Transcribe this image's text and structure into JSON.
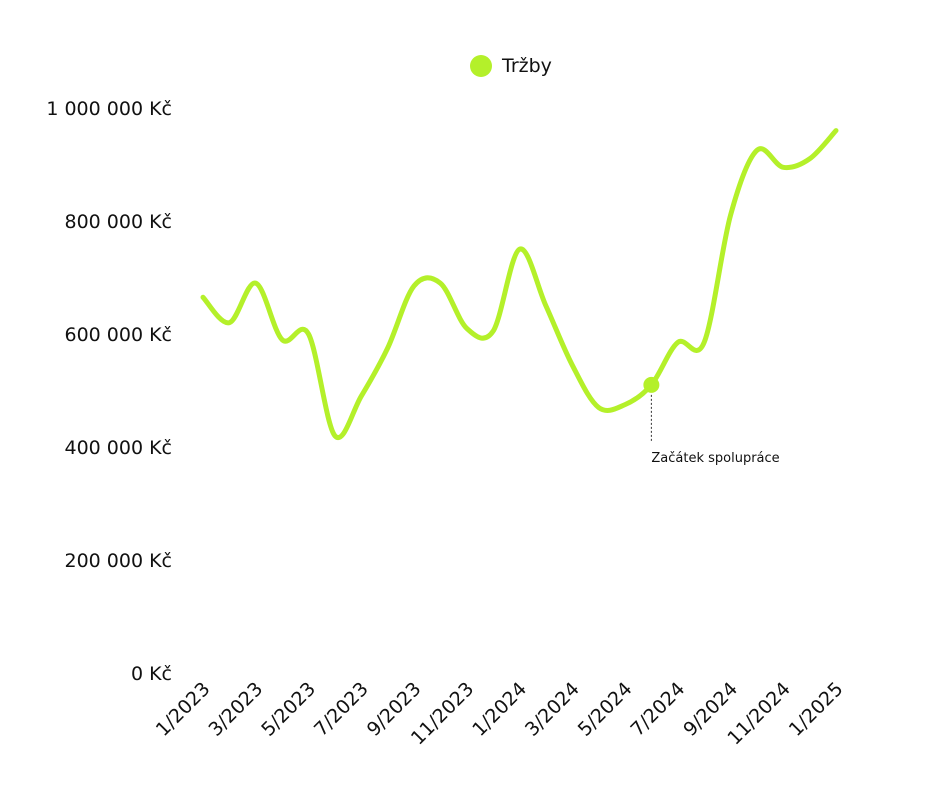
{
  "chart_data": {
    "type": "line",
    "legend": {
      "label": "Tržby",
      "position": "top-center"
    },
    "y_ticks": [
      "0 Kč",
      "200 000 Kč",
      "400 000 Kč",
      "600 000 Kč",
      "800 000 Kč",
      "1 000 000 Kč"
    ],
    "x_ticks": [
      "1/2023",
      "3/2023",
      "5/2023",
      "7/2023",
      "9/2023",
      "11/2023",
      "1/2024",
      "3/2024",
      "5/2024",
      "7/2024",
      "9/2024",
      "11/2024",
      "1/2025"
    ],
    "ylim": [
      0,
      1000000
    ],
    "xlim": [
      "2023-01",
      "2025-01"
    ],
    "grid": false,
    "series": [
      {
        "name": "Tržby",
        "color": "#b4f02a",
        "points": [
          {
            "x": "2023-01",
            "y": 665000
          },
          {
            "x": "2023-02",
            "y": 620000
          },
          {
            "x": "2023-03",
            "y": 690000
          },
          {
            "x": "2023-04",
            "y": 590000
          },
          {
            "x": "2023-05",
            "y": 600000
          },
          {
            "x": "2023-06",
            "y": 420000
          },
          {
            "x": "2023-07",
            "y": 490000
          },
          {
            "x": "2023-08",
            "y": 575000
          },
          {
            "x": "2023-09",
            "y": 685000
          },
          {
            "x": "2023-10",
            "y": 690000
          },
          {
            "x": "2023-11",
            "y": 610000
          },
          {
            "x": "2023-12",
            "y": 605000
          },
          {
            "x": "2024-01",
            "y": 750000
          },
          {
            "x": "2024-02",
            "y": 650000
          },
          {
            "x": "2024-03",
            "y": 545000
          },
          {
            "x": "2024-04",
            "y": 470000
          },
          {
            "x": "2024-05",
            "y": 475000
          },
          {
            "x": "2024-06",
            "y": 510000
          },
          {
            "x": "2024-07",
            "y": 585000
          },
          {
            "x": "2024-08",
            "y": 585000
          },
          {
            "x": "2024-09",
            "y": 810000
          },
          {
            "x": "2024-10",
            "y": 925000
          },
          {
            "x": "2024-11",
            "y": 895000
          },
          {
            "x": "2024-12",
            "y": 910000
          },
          {
            "x": "2025-01",
            "y": 960000
          }
        ]
      }
    ],
    "annotation": {
      "text": "Začátek spolupráce",
      "x": "2024-06",
      "y": 510000
    }
  }
}
